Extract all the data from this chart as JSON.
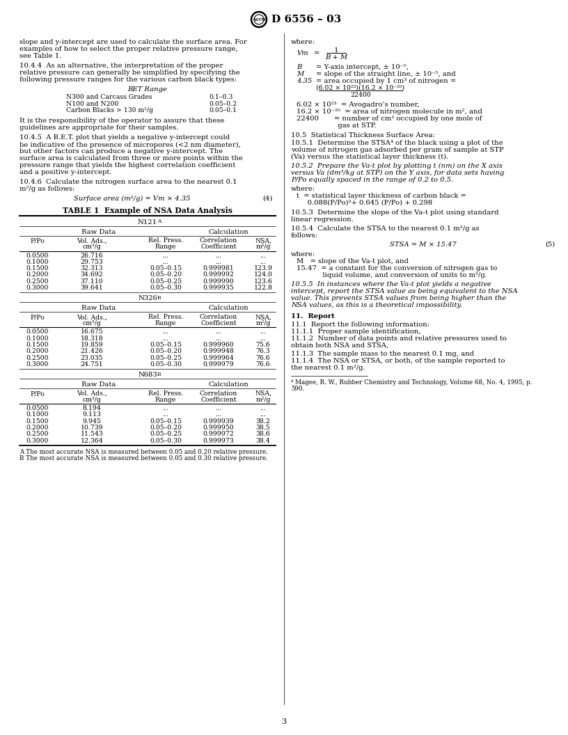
{
  "title": "D 6556 – 03",
  "page_number": "3",
  "left_col": {
    "para1_lines": [
      "slope and y-intercept are used to calculate the surface area. For",
      "examples of how to select the proper relative pressure range,",
      "see Table 1."
    ],
    "para2_lines": [
      "10.4.4  As an alternative, the interpretation of the proper",
      "relative pressure can generally be simplified by specifying the",
      "following pressure ranges for the various carbon black types:"
    ],
    "bet_table_title": "BET Range",
    "bet_rows": [
      [
        "N300 and Carcass Grades",
        "0.1–0.3"
      ],
      [
        "N100 and N200",
        "0.05–0.2"
      ],
      [
        "Carbon Blacks > 130 m²/g",
        "0.05–0.1"
      ]
    ],
    "para3_lines": [
      "It is the responsibility of the operator to assure that these",
      "guidelines are appropriate for their samples."
    ],
    "para4_lines": [
      "10.4.5  A B.E.T. plot that yields a negative y-intercept could",
      "be indicative of the presence of micropores (<2 nm diameter),",
      "but other factors can produce a negative y-intercept. The",
      "surface area is calculated from three or more points within the",
      "pressure range that yields the highest correlation coefficient",
      "and a positive y-intercept."
    ],
    "para5_lines": [
      "10.4.6  Calculate the nitrogen surface area to the nearest 0.1",
      "m²/g as follows:"
    ],
    "formula4_left": "Surface area (m²/g) = ",
    "formula4_right": "Vm × 4.35",
    "formula4_num": "(4)",
    "table_title": "TABLE 1  Example of NSA Data Analysis",
    "col_labels": [
      "P/Po",
      "Vol. Ads.,\ncm³/g",
      "Rel. Press.\nRange",
      "Correlation\nCoefficient",
      "NSA,\nm²/g"
    ],
    "raw_data_label": "Raw Data",
    "calc_label": "Calculation",
    "sample1_name": "N121",
    "sample1_sup": "A",
    "sample2_name": "N326",
    "sample2_sup": "B",
    "sample3_name": "N683",
    "sample3_sup": "B",
    "sample1_data": [
      [
        "0.0500",
        "26.716",
        "...",
        "...",
        "..."
      ],
      [
        "0.1000",
        "29.753",
        "...",
        "...",
        "..."
      ],
      [
        "0.1500",
        "32.313",
        "0.05–0.15",
        "0.999981",
        "123.9"
      ],
      [
        "0.2000",
        "34.692",
        "0.05–0.20",
        "0.999992",
        "124.0"
      ],
      [
        "0.2500",
        "37.110",
        "0.05–0.25",
        "0.999990",
        "123.6"
      ],
      [
        "0.3000",
        "39.641",
        "0.05–0.30",
        "0.999935",
        "122.8"
      ]
    ],
    "sample2_data": [
      [
        "0.0500",
        "16.675",
        "...",
        "...",
        "..."
      ],
      [
        "0.1000",
        "18.318",
        "...",
        "...",
        "..."
      ],
      [
        "0.1500",
        "19.859",
        "0.05–0.15",
        "0.999960",
        "75.6"
      ],
      [
        "0.2000",
        "21.426",
        "0.05–0.20",
        "0.999948",
        "76.3"
      ],
      [
        "0.2500",
        "23.035",
        "0.05–0.25",
        "0.999964",
        "76.6"
      ],
      [
        "0.3000",
        "24.751",
        "0.05–0.30",
        "0.999979",
        "76.6"
      ]
    ],
    "sample3_data": [
      [
        "0.0500",
        "8.194",
        "...",
        "...",
        "..."
      ],
      [
        "0.1000",
        "9.113",
        "...",
        "...",
        "..."
      ],
      [
        "0.1500",
        "9.945",
        "0.05–0.15",
        "0.999939",
        "38.2"
      ],
      [
        "0.2000",
        "10.739",
        "0.05–0.20",
        "0.999950",
        "38.5"
      ],
      [
        "0.2500",
        "11.543",
        "0.05–0.25",
        "0.999972",
        "38.6"
      ],
      [
        "0.3000",
        "12.364",
        "0.05–0.30",
        "0.999973",
        "38.4"
      ]
    ],
    "footnote_a": "A The most accurate NSA is measured between 0.05 and 0.20 relative pressure.",
    "footnote_b": "B The most accurate NSA is measured between 0.05 and 0.30 relative pressure."
  },
  "right_col": {
    "where1": "where:",
    "vm_label": "Vm",
    "vm_eq_top": "1",
    "vm_eq_bot": "B + M",
    "b_var": "B",
    "b_def": "= Y-axis intercept, ± 10⁻⁵,",
    "m_var": "M",
    "m_def": "= slope of the straight line, ± 10⁻⁵, and",
    "n435_var": "4.35",
    "n435_def": "= area occupied by 1 cm³ of nitrogen =",
    "frac_num": "(6.02 × 10²³)(16.2 × 10⁻²⁰)",
    "frac_den": "22400",
    "def_lines": [
      "6.02 × 10²³  = Avogadro’s number,",
      "16.2 × 10⁻²⁰  = area of nitrogen molecule in m², and",
      "22400       = number of cm³ occupied by one mole of",
      "                   gas at STP."
    ],
    "sec105": "10.5  Statistical Thickness Surface Area:",
    "para1051_lines": [
      "10.5.1  Determine the STSA⁴ of the black using a plot of the",
      "volume of nitrogen gas adsorbed per gram of sample at STP",
      "(Va) versus the statistical layer thickness (t)."
    ],
    "para1052_lines": [
      "10.5.2  Prepare the Va-t plot by plotting t (nm) on the X axis",
      "versus Va (dm³/kg at STP) on the Y axis, for data sets having",
      "P/Po equally spaced in the range of 0.2 to 0.5."
    ],
    "where2": "where:",
    "t_lines": [
      "t  = statistical layer thickness of carbon black =",
      "     0.088(P/Po)²+ 0.645 (P/Po) + 0.298"
    ],
    "para1053_lines": [
      "10.5.3  Determine the slope of the Va-t plot using standard",
      "linear regression."
    ],
    "para1054_lines": [
      "10.5.4  Calculate the STSA to the nearest 0.1 m²/g as",
      "follows:"
    ],
    "formula5": "STSA = M × 15.47",
    "formula5_num": "(5)",
    "where3": "where:",
    "m_stsa": "M   = slope of the Va-t plot, and",
    "n1547_lines": [
      "15.47  = a constant for the conversion of nitrogen gas to",
      "            liquid volume, and conversion of units to m²/g."
    ],
    "para1055_lines": [
      "10.5.5  In instances where the Va-t plot yields a negative",
      "intercept, report the STSA value as being equivalent to the NSA",
      "value. This prevents STSA values from being higher than the",
      "NSA values, as this is a theoretical impossibility."
    ],
    "sec11": "11.  Report",
    "para111": "11.1  Report the following information:",
    "para1111": "11.1.1  Proper sample identification,",
    "para1112_lines": [
      "11.1.2  Number of data points and relative pressures used to",
      "obtain both NSA and STSA,"
    ],
    "para1113": "11.1.3  The sample mass to the nearest 0.1 mg, and",
    "para1114_lines": [
      "11.1.4  The NSA or STSA, or both, of the sample reported to",
      "the nearest 0.1 m²/g."
    ],
    "footnote4_lines": [
      "⁴ Magee, R. W., Rubber Chemistry and Technology, Volume 68, No. 4, 1995, p.",
      "590."
    ]
  }
}
